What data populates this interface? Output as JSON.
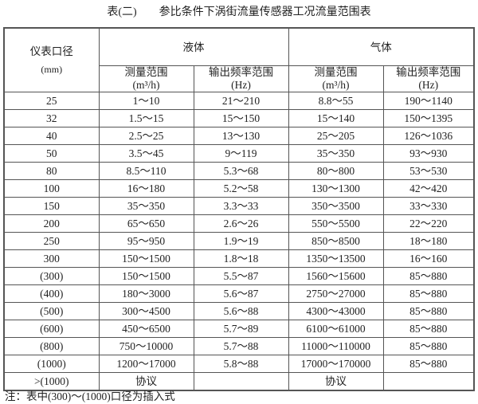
{
  "title": "表(二)　　参比条件下涡街流量传感器工况流量范围表",
  "header": {
    "diameter": "仪表口径",
    "diameter_unit": "(mm)",
    "liquid": "液体",
    "gas": "气体",
    "range": "测量范围",
    "range_unit": "(m³/h)",
    "freq": "输出频率范围",
    "freq_unit": "(Hz)"
  },
  "rows": [
    [
      "25",
      "1～10",
      "21～210",
      "8.8～55",
      "190～1140"
    ],
    [
      "32",
      "1.5～15",
      "15～150",
      "15～140",
      "150～1395"
    ],
    [
      "40",
      "2.5～25",
      "13～130",
      "25～205",
      "126～1036"
    ],
    [
      "50",
      "3.5～45",
      "9～119",
      "35～350",
      "93～930"
    ],
    [
      "80",
      "8.5～110",
      "5.3～68",
      "80～800",
      "53～530"
    ],
    [
      "100",
      "16～180",
      "5.2～58",
      "130～1300",
      "42～420"
    ],
    [
      "150",
      "35～350",
      "3.3～33",
      "350～3500",
      "33～330"
    ],
    [
      "200",
      "65～650",
      "2.6～26",
      "550～5500",
      "22～220"
    ],
    [
      "250",
      "95～950",
      "1.9～19",
      "850～8500",
      "18～180"
    ],
    [
      "300",
      "150～1500",
      "1.8～18",
      "1350～13500",
      "16～160"
    ],
    [
      "(300)",
      "150～1500",
      "5.5～87",
      "1560～15600",
      "85～880"
    ],
    [
      "(400)",
      "180～3000",
      "5.6～87",
      "2750～27000",
      "85～880"
    ],
    [
      "(500)",
      "300～4500",
      "5.6～88",
      "4300～43000",
      "85～880"
    ],
    [
      "(600)",
      "450～6500",
      "5.7～89",
      "6100～61000",
      "85～880"
    ],
    [
      "(800)",
      "750～10000",
      "5.7～88",
      "11000～110000",
      "85～880"
    ],
    [
      "(1000)",
      "1200～17000",
      "5.8～88",
      "17000～170000",
      "85～880"
    ],
    [
      ">(1000)",
      "协议",
      "",
      "协议",
      ""
    ]
  ],
  "note": "注：表中(300)～(1000)口径为插入式"
}
